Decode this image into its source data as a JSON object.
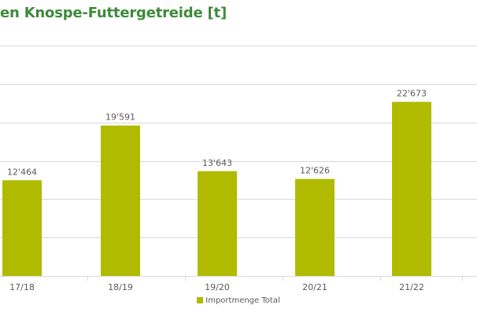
{
  "chart_data": {
    "type": "bar",
    "title": "en Knospe-Futtergetreide [t]",
    "categories": [
      "17/18",
      "18/19",
      "19/20",
      "20/21",
      "21/22"
    ],
    "series": [
      {
        "name": "Importmenge Total",
        "values": [
          12464,
          19591,
          13643,
          12626,
          22673
        ],
        "labels": [
          "12'464",
          "19'591",
          "13'643",
          "12'626",
          "22'673"
        ]
      }
    ],
    "xlabel": "",
    "ylabel": "",
    "ylim": [
      0,
      30000
    ],
    "grid": true,
    "legend": "bottom-center",
    "colors": {
      "bar": "#b0bb00",
      "title": "#3d8a3a",
      "grid": "#d9d9d9",
      "text": "#595959"
    }
  }
}
